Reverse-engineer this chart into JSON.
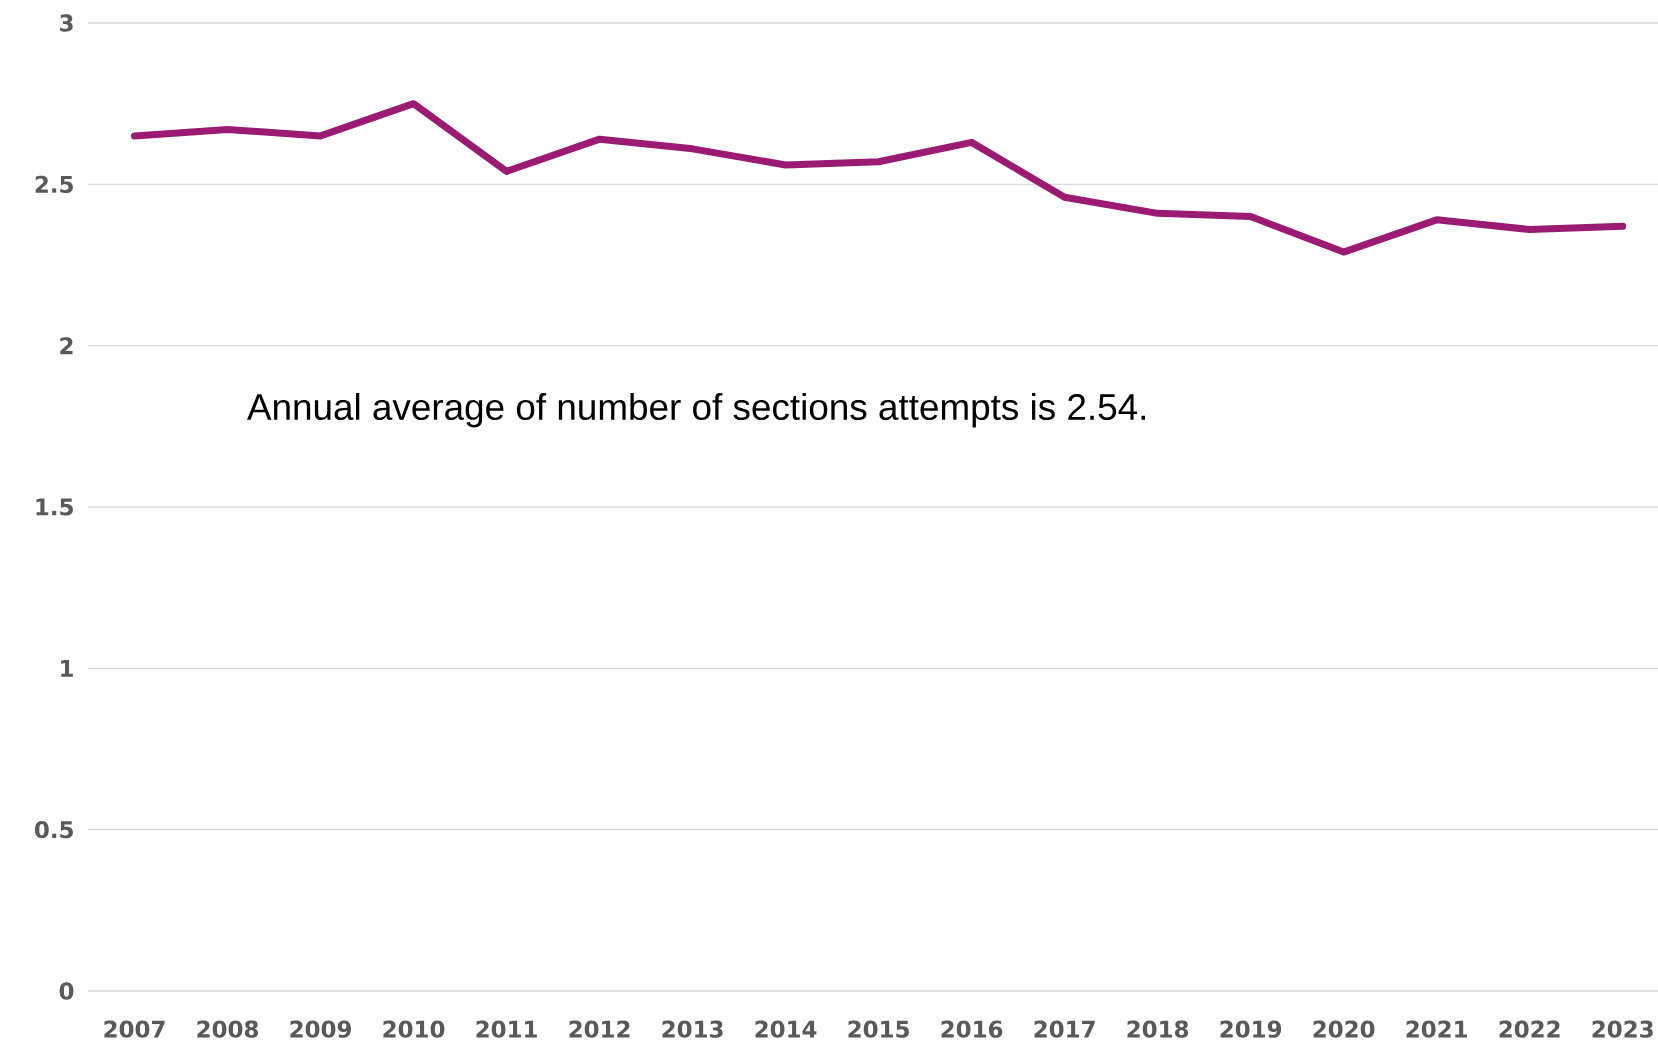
{
  "chart_data": {
    "type": "line",
    "categories": [
      "2007",
      "2008",
      "2009",
      "2010",
      "2011",
      "2012",
      "2013",
      "2014",
      "2015",
      "2016",
      "2017",
      "2018",
      "2019",
      "2020",
      "2021",
      "2022",
      "2023"
    ],
    "series": [
      {
        "color": "#9b1b74",
        "values": [
          2.65,
          2.67,
          2.65,
          2.75,
          2.54,
          2.64,
          2.61,
          2.56,
          2.57,
          2.63,
          2.46,
          2.41,
          2.4,
          2.29,
          2.39,
          2.36,
          2.37
        ]
      }
    ],
    "ylim": [
      0,
      3
    ],
    "yticks": [
      0,
      0.5,
      1,
      1.5,
      2,
      2.5,
      3
    ],
    "grid": "y",
    "marker": "none",
    "line_style": "solid",
    "annotations": [
      "Annual average of number of sections attempts is 2.54."
    ]
  }
}
